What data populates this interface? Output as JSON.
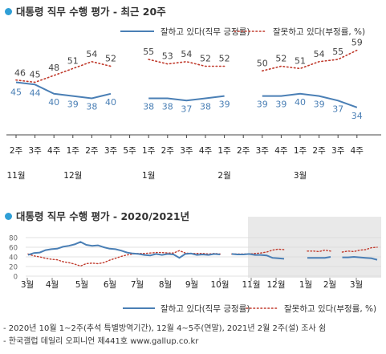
{
  "colors": {
    "approve": "#4a7fb5",
    "disapprove": "#c0392b",
    "title_dot": "#2f9fd6",
    "shade": "#e9e9e9"
  },
  "chart_data": [
    {
      "type": "line",
      "title": "대통령 직무 수행 평가 - 최근 20주",
      "x": [
        "2주",
        "3주",
        "4주",
        "1주",
        "2주",
        "3주",
        "5주",
        "1주",
        "2주",
        "3주",
        "4주",
        "1주",
        "2주",
        "3주",
        "4주",
        "1주",
        "2주",
        "3주",
        "4주"
      ],
      "month_labels": [
        {
          "label": "11월",
          "at": "2주"
        },
        {
          "label": "12월",
          "at": "1주"
        },
        {
          "label": "1월",
          "at": "1주"
        },
        {
          "label": "2월",
          "at": "1주"
        },
        {
          "label": "3월",
          "at": "1주"
        }
      ],
      "series": [
        {
          "name": "잘하고 있다(직무 긍정률)",
          "style": "solid",
          "values": [
            45,
            44,
            40,
            39,
            38,
            40,
            null,
            38,
            38,
            37,
            38,
            39,
            null,
            39,
            39,
            40,
            39,
            37,
            34
          ]
        },
        {
          "name": "잘못하고 있다(부정률, %)",
          "style": "dotted",
          "values": [
            46,
            45,
            48,
            51,
            54,
            52,
            null,
            55,
            53,
            54,
            52,
            52,
            null,
            50,
            52,
            51,
            54,
            55,
            59
          ]
        }
      ],
      "legend": "top-right"
    },
    {
      "type": "line",
      "title": "대통령 직무 수행 평가 - 2020/2021년",
      "y_ticks": [
        "80",
        "60",
        "40",
        "20",
        "0"
      ],
      "ylim": [
        0,
        80
      ],
      "x_labels": [
        "3월",
        "4월",
        "5월",
        "6월",
        "7월",
        "8월",
        "9월",
        "10월",
        "11월",
        "12월",
        "1월",
        "2월",
        "3월"
      ],
      "shaded_from": "11월",
      "series": [
        {
          "name": "잘하고 있다(직무 긍정률)",
          "style": "solid",
          "values": [
            44,
            48,
            49,
            54,
            56,
            57,
            61,
            63,
            66,
            71,
            65,
            63,
            64,
            60,
            57,
            56,
            53,
            49,
            47,
            46,
            44,
            43,
            46,
            44,
            46,
            45,
            38,
            46,
            47,
            44,
            45,
            44,
            46,
            45,
            null,
            46,
            45,
            45,
            46,
            44,
            44,
            43,
            38,
            37,
            36,
            null,
            40,
            null,
            38,
            38,
            38,
            38,
            40,
            null,
            39,
            39,
            40,
            39,
            38,
            37,
            34
          ]
        },
        {
          "name": "잘못하고 있다(부정률, %)",
          "style": "dotted",
          "values": [
            46,
            42,
            40,
            37,
            35,
            34,
            30,
            28,
            25,
            21,
            26,
            27,
            26,
            28,
            33,
            37,
            41,
            44,
            46,
            47,
            47,
            48,
            49,
            49,
            48,
            48,
            53,
            48,
            47,
            47,
            47,
            46,
            47,
            46,
            null,
            46,
            46,
            46,
            46,
            47,
            48,
            50,
            54,
            56,
            55,
            null,
            54,
            null,
            52,
            52,
            51,
            54,
            52,
            null,
            50,
            52,
            51,
            54,
            55,
            59,
            60
          ]
        }
      ],
      "legend": "bottom-right"
    }
  ],
  "notes": [
    "- 2020년 10월 1~2주(추석 특별방역기간), 12월 4~5주(연말), 2021년 2월 2주(설) 조사 쉼",
    "- 한국갤럽 데일리 오피니언 제441호 www.gallup.co.kr"
  ]
}
